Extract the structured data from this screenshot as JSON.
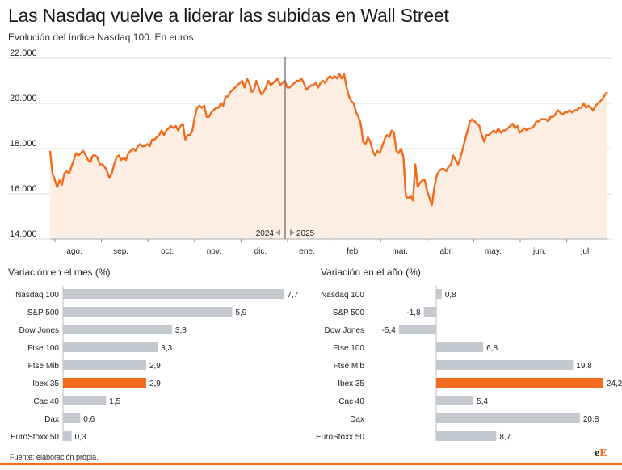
{
  "header": {
    "title": "Las Nasdaq vuelve a liderar las subidas en Wall Street",
    "subtitle": "Evolución del índice Nasdaq 100.  En euros"
  },
  "footer": {
    "source": "Fuente: elaboración propia.",
    "logo_main": "e",
    "logo_accent": "E"
  },
  "colors": {
    "accent": "#f26a1b",
    "bar": "#c4c9cf",
    "area": "#fdeee3",
    "grid": "#d9d9d9"
  },
  "chart_data": [
    {
      "type": "area",
      "ylim": [
        14000,
        22000
      ],
      "y_ticks": [
        "14.000",
        "16.000",
        "18.000",
        "20.000",
        "22.000"
      ],
      "x_ticks": [
        "ago.",
        "sep.",
        "oct.",
        "nov.",
        "dic.",
        "ene.",
        "feb.",
        "mar.",
        "abr.",
        "may.",
        "jun.",
        "jul."
      ],
      "year_left": "2024",
      "year_right": "2025",
      "values": [
        17900,
        16900,
        16600,
        16300,
        16600,
        16400,
        16900,
        17000,
        16900,
        17200,
        17500,
        17800,
        17700,
        17800,
        17900,
        17700,
        17500,
        17400,
        17700,
        17700,
        17600,
        17300,
        17300,
        17200,
        17000,
        16700,
        16900,
        17300,
        17600,
        17700,
        17500,
        17600,
        17500,
        17800,
        17900,
        18000,
        17900,
        18100,
        18200,
        18100,
        18100,
        18200,
        18100,
        18400,
        18400,
        18500,
        18600,
        18800,
        18600,
        18800,
        18900,
        19000,
        18900,
        19000,
        18800,
        19000,
        19100,
        18400,
        18600,
        18600,
        18800,
        19400,
        19800,
        19900,
        19800,
        19900,
        19400,
        19400,
        19600,
        19700,
        19800,
        19800,
        20000,
        19900,
        20300,
        20300,
        20500,
        20600,
        20700,
        20800,
        20900,
        21000,
        20700,
        21100,
        20900,
        20500,
        20600,
        21000,
        20700,
        20400,
        20500,
        20700,
        21000,
        20800,
        20900,
        21000,
        21100,
        20800,
        20900,
        21000,
        20700,
        20700,
        20800,
        20900,
        21000,
        21000,
        21100,
        20900,
        20600,
        20700,
        20800,
        20800,
        20900,
        20700,
        20900,
        21000,
        20900,
        21100,
        21200,
        21100,
        21200,
        21100,
        21300,
        21100,
        21300,
        20700,
        20300,
        20100,
        20000,
        19600,
        19400,
        19100,
        18300,
        18200,
        18500,
        18300,
        17900,
        17700,
        17900,
        17800,
        18100,
        18400,
        18600,
        18500,
        18800,
        18700,
        17900,
        17800,
        18000,
        17600,
        15900,
        15800,
        15900,
        15700,
        17300,
        16300,
        16500,
        16600,
        16600,
        16100,
        15800,
        15500,
        16300,
        16800,
        17000,
        17100,
        17100,
        17000,
        17200,
        17300,
        17700,
        17500,
        17300,
        17600,
        18000,
        18400,
        18800,
        19200,
        19300,
        19200,
        19100,
        19000,
        18600,
        18300,
        18600,
        18600,
        18700,
        18800,
        18700,
        18900,
        18700,
        18800,
        18800,
        18900,
        19000,
        19100,
        18900,
        19000,
        18700,
        18800,
        18900,
        18800,
        18900,
        18900,
        19000,
        19200,
        19200,
        19300,
        19300,
        19300,
        19200,
        19400,
        19400,
        19500,
        19700,
        19600,
        19500,
        19600,
        19600,
        19700,
        19600,
        19700,
        19700,
        19800,
        19800,
        20000,
        19800,
        19900,
        19800,
        19700,
        19900,
        20000,
        20100,
        20200,
        20400,
        20500
      ]
    },
    {
      "type": "bar",
      "title": "Variación en el mes (%)",
      "categories": [
        "Nasdaq 100",
        "S&P 500",
        "Dow Jones",
        "Ftse 100",
        "Ftse Mib",
        "Ibex 35",
        "Cac 40",
        "Dax",
        "EuroStoxx 50"
      ],
      "values": [
        7.7,
        5.9,
        3.8,
        3.3,
        2.9,
        2.9,
        1.5,
        0.6,
        0.3
      ],
      "labels": [
        "7,7",
        "5,9",
        "3,8",
        "3,3",
        "2,9",
        "2,9",
        "1,5",
        "0,6",
        "0,3"
      ],
      "highlight": "Ibex 35"
    },
    {
      "type": "bar",
      "title": "Variación en el año (%)",
      "categories": [
        "Nasdaq 100",
        "S&P 500",
        "Dow Jones",
        "Ftse 100",
        "Ftse Mib",
        "Ibex 35",
        "Cac 40",
        "Dax",
        "EuroStoxx 50"
      ],
      "values": [
        0.8,
        -1.8,
        -5.4,
        6.8,
        19.8,
        24.2,
        5.4,
        20.8,
        8.7
      ],
      "labels": [
        "0,8",
        "-1,8",
        "-5,4",
        "6,8",
        "19,8",
        "24,2",
        "5,4",
        "20,8",
        "8,7"
      ],
      "highlight": "Ibex 35"
    }
  ]
}
